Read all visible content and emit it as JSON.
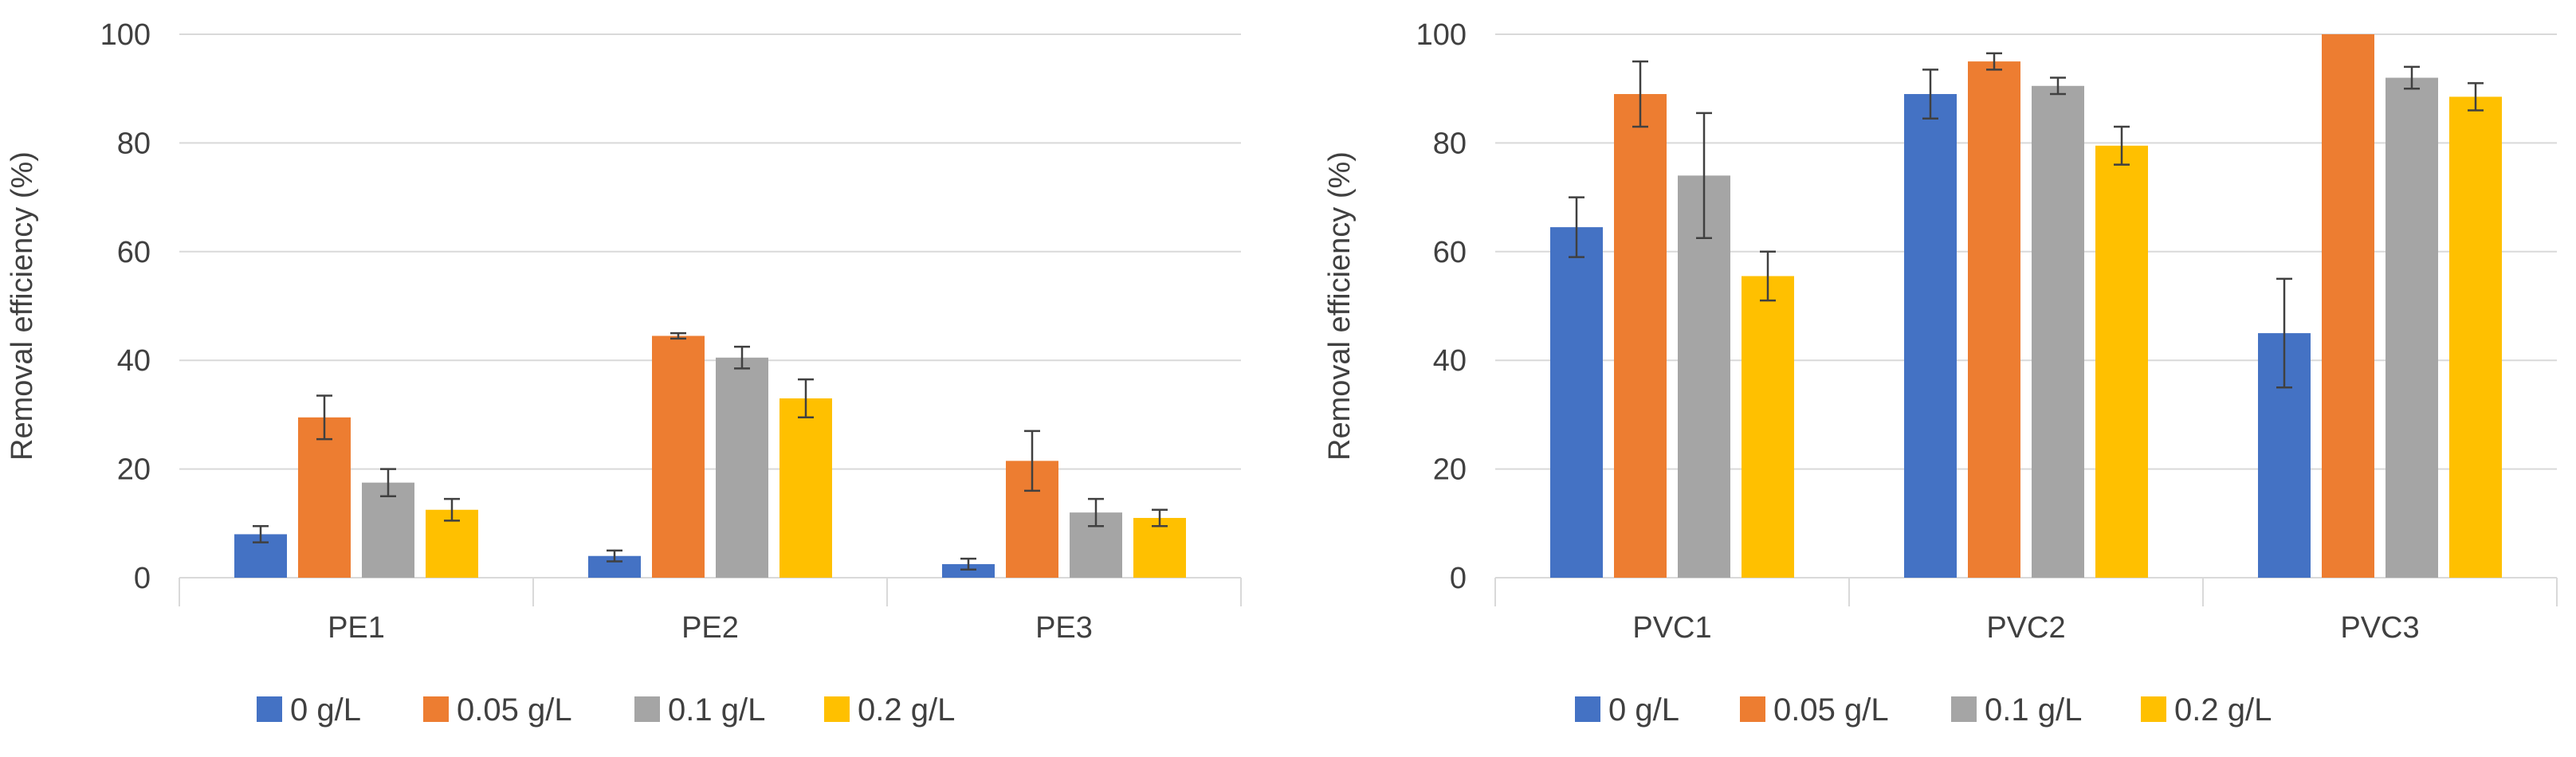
{
  "chart_data": [
    {
      "type": "bar",
      "title": "",
      "xlabel": "",
      "ylabel": "Removal efficiency (%)",
      "ylim": [
        0,
        100
      ],
      "yticks": [
        0,
        20,
        40,
        60,
        80,
        100
      ],
      "grid": true,
      "legend_position": "bottom",
      "categories": [
        "PE1",
        "PE2",
        "PE3"
      ],
      "series": [
        {
          "name": "0 g/L",
          "color": "#4472c4",
          "values": [
            8,
            4,
            2.5
          ],
          "errors": [
            1.5,
            1,
            1
          ]
        },
        {
          "name": "0.05 g/L",
          "color": "#ed7d31",
          "values": [
            29.5,
            44.5,
            21.5
          ],
          "errors": [
            4,
            0.5,
            5.5
          ]
        },
        {
          "name": "0.1 g/L",
          "color": "#a5a5a5",
          "values": [
            17.5,
            40.5,
            12
          ],
          "errors": [
            2.5,
            2,
            2.5
          ]
        },
        {
          "name": "0.2 g/L",
          "color": "#ffc000",
          "values": [
            12.5,
            33,
            11
          ],
          "errors": [
            2,
            3.5,
            1.5
          ]
        }
      ]
    },
    {
      "type": "bar",
      "title": "",
      "xlabel": "",
      "ylabel": "Removal efficiency (%)",
      "ylim": [
        0,
        100
      ],
      "yticks": [
        0,
        20,
        40,
        60,
        80,
        100
      ],
      "grid": true,
      "legend_position": "bottom",
      "categories": [
        "PVC1",
        "PVC2",
        "PVC3"
      ],
      "series": [
        {
          "name": "0 g/L",
          "color": "#4472c4",
          "values": [
            64.5,
            89,
            45
          ],
          "errors": [
            5.5,
            4.5,
            10
          ]
        },
        {
          "name": "0.05 g/L",
          "color": "#ed7d31",
          "values": [
            89,
            95,
            100
          ],
          "errors": [
            6,
            1.5,
            0
          ]
        },
        {
          "name": "0.1 g/L",
          "color": "#a5a5a5",
          "values": [
            74,
            90.5,
            92
          ],
          "errors": [
            11.5,
            1.5,
            2
          ]
        },
        {
          "name": "0.2 g/L",
          "color": "#ffc000",
          "values": [
            55.5,
            79.5,
            88.5
          ],
          "errors": [
            4.5,
            3.5,
            2.5
          ]
        }
      ]
    }
  ]
}
